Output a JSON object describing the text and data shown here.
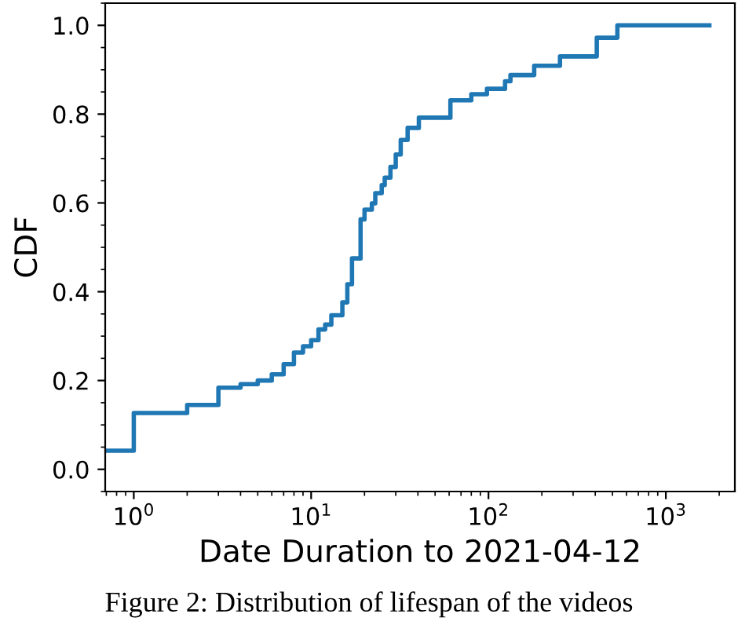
{
  "chart_data": {
    "type": "step",
    "xlabel": "Date Duration to 2021-04-12",
    "ylabel": "CDF",
    "annotations": [
      "Figure 2: Distribution of lifespan of the videos"
    ],
    "log": "x",
    "xlim": [
      0.69,
      2450
    ],
    "ylim": [
      -0.05,
      1.05
    ],
    "xticks": [
      {
        "value": 1,
        "label": "10$^{0}$"
      },
      {
        "value": 10,
        "label": "10$^{1}$"
      },
      {
        "value": 100,
        "label": "10$^{2}$"
      },
      {
        "value": 1000,
        "label": "10$^{3}$"
      }
    ],
    "yticks": [
      {
        "value": 0,
        "label": "0.0"
      },
      {
        "value": 0.2,
        "label": "0.2"
      },
      {
        "value": 0.4,
        "label": "0.4"
      },
      {
        "value": 0.6,
        "label": "0.6"
      },
      {
        "value": 0.8,
        "label": "0.8"
      },
      {
        "value": 1,
        "label": "1.0"
      }
    ],
    "grid": false,
    "series": [
      {
        "color": "#1f77b4",
        "x": [
          0.69,
          1,
          2,
          3,
          4,
          5,
          6,
          7,
          8,
          9,
          10,
          11,
          12,
          13,
          15,
          16,
          17,
          19,
          20,
          22,
          23,
          25,
          26,
          28,
          30,
          32,
          35,
          40.5,
          61,
          80,
          98,
          124,
          133,
          181,
          253,
          408,
          533,
          1760
        ],
        "values": [
          0.042,
          0.127,
          0.145,
          0.184,
          0.192,
          0.2,
          0.214,
          0.237,
          0.263,
          0.277,
          0.291,
          0.315,
          0.326,
          0.347,
          0.376,
          0.417,
          0.475,
          0.563,
          0.585,
          0.599,
          0.622,
          0.64,
          0.657,
          0.681,
          0.709,
          0.742,
          0.769,
          0.792,
          0.831,
          0.845,
          0.857,
          0.874,
          0.888,
          0.909,
          0.93,
          0.972,
          1.0,
          1.0
        ]
      }
    ]
  }
}
